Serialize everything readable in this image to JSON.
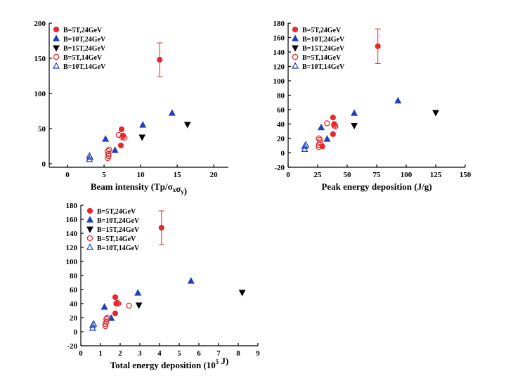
{
  "colors": {
    "red": "#e8282b",
    "blue": "#1f3fbf",
    "black": "#000000"
  },
  "chart_data": [
    {
      "type": "scatter",
      "title": "",
      "xlabel": "Beam intensity (Tp/σ_xσ_y)",
      "ylabel": "",
      "xlim": [
        -2.5,
        22
      ],
      "ylim": [
        -5,
        200
      ],
      "xticks": [
        0,
        5,
        10,
        15,
        20
      ],
      "yticks": [
        0,
        50,
        100,
        150,
        200
      ],
      "legend_position": "top-left",
      "legend": [
        "B=5T,24GeV",
        "B=10T,24GeV",
        "B=15T,24GeV",
        "B=5T,14GeV",
        "B=10T,14GeV"
      ],
      "series": [
        {
          "name": "B=5T,24GeV",
          "marker": "circle-filled",
          "color": "red",
          "points": [
            [
              7.3,
              26
            ],
            [
              7.4,
              49
            ],
            [
              7.6,
              40
            ],
            [
              12.6,
              148
            ]
          ],
          "errorbars": [
            [
              12.6,
              124,
              172
            ]
          ]
        },
        {
          "name": "B=10T,24GeV",
          "marker": "triangle-up-filled",
          "color": "blue",
          "points": [
            [
              5.2,
              35
            ],
            [
              6.5,
              19
            ],
            [
              10.3,
              55
            ],
            [
              14.3,
              72
            ]
          ]
        },
        {
          "name": "B=15T,24GeV",
          "marker": "triangle-down-filled",
          "color": "black",
          "points": [
            [
              10.2,
              38
            ],
            [
              16.4,
              56
            ]
          ]
        },
        {
          "name": "B=5T,14GeV",
          "marker": "circle-open",
          "color": "red",
          "points": [
            [
              5.5,
              8
            ],
            [
              5.6,
              11
            ],
            [
              5.6,
              14
            ],
            [
              5.5,
              18
            ],
            [
              5.7,
              20
            ],
            [
              7.0,
              41
            ],
            [
              7.5,
              38
            ],
            [
              7.8,
              37
            ]
          ]
        },
        {
          "name": "B=10T,14GeV",
          "marker": "triangle-up-open",
          "color": "blue",
          "points": [
            [
              3.0,
              6
            ],
            [
              3.1,
              9
            ],
            [
              3.0,
              11
            ]
          ]
        }
      ]
    },
    {
      "type": "scatter",
      "title": "",
      "xlabel": "Peak energy deposition (J/g)",
      "ylabel": "",
      "xlim": [
        0,
        150
      ],
      "ylim": [
        -20,
        180
      ],
      "xticks": [
        0,
        25,
        50,
        75,
        100,
        125,
        150
      ],
      "yticks": [
        -20,
        0,
        20,
        40,
        60,
        80,
        100,
        120,
        140,
        160,
        180
      ],
      "legend_position": "top-left",
      "legend": [
        "B=5T,24GeV",
        "B=10T,24GeV",
        "B=15T,24GeV",
        "B=5T,14GeV",
        "B=10T,14GeV"
      ],
      "series": [
        {
          "name": "B=5T,24GeV",
          "marker": "circle-filled",
          "color": "red",
          "points": [
            [
              29,
              9
            ],
            [
              38,
              26
            ],
            [
              38,
              49
            ],
            [
              39,
              40
            ],
            [
              76,
              148
            ]
          ],
          "errorbars": [
            [
              76,
              124,
              172
            ]
          ]
        },
        {
          "name": "B=10T,24GeV",
          "marker": "triangle-up-filled",
          "color": "blue",
          "points": [
            [
              28,
              35
            ],
            [
              33,
              19
            ],
            [
              56,
              55
            ],
            [
              93,
              72
            ]
          ]
        },
        {
          "name": "B=15T,24GeV",
          "marker": "triangle-down-filled",
          "color": "black",
          "points": [
            [
              56,
              38
            ],
            [
              125,
              56
            ]
          ]
        },
        {
          "name": "B=5T,14GeV",
          "marker": "circle-open",
          "color": "red",
          "points": [
            [
              26,
              8
            ],
            [
              26,
              11
            ],
            [
              27,
              14
            ],
            [
              27,
              18
            ],
            [
              26,
              20
            ],
            [
              33,
              41
            ],
            [
              39,
              38
            ],
            [
              40,
              37
            ]
          ]
        },
        {
          "name": "B=10T,14GeV",
          "marker": "triangle-up-open",
          "color": "blue",
          "points": [
            [
              14,
              5
            ],
            [
              14,
              9
            ],
            [
              15,
              11
            ]
          ]
        }
      ]
    },
    {
      "type": "scatter",
      "title": "",
      "xlabel": "Total energy deposition (10^5 J)",
      "ylabel": "",
      "xlim": [
        0,
        9
      ],
      "ylim": [
        -20,
        180
      ],
      "xticks": [
        0,
        1,
        2,
        3,
        4,
        5,
        6,
        7,
        8,
        9
      ],
      "yticks": [
        -20,
        0,
        20,
        40,
        60,
        80,
        100,
        120,
        140,
        160,
        180
      ],
      "legend_position": "top-left",
      "legend": [
        "B=5T,24GeV",
        "B=10T,24GeV",
        "B=15T,24GeV",
        "B=5T,14GeV",
        "B=10T,14GeV"
      ],
      "series": [
        {
          "name": "B=5T,24GeV",
          "marker": "circle-filled",
          "color": "red",
          "points": [
            [
              1.75,
              26
            ],
            [
              1.75,
              49
            ],
            [
              1.8,
              40
            ],
            [
              4.1,
              148
            ]
          ],
          "errorbars": [
            [
              4.1,
              124,
              172
            ]
          ]
        },
        {
          "name": "B=10T,24GeV",
          "marker": "triangle-up-filled",
          "color": "blue",
          "points": [
            [
              1.2,
              35
            ],
            [
              1.55,
              19
            ],
            [
              2.9,
              55
            ],
            [
              5.6,
              72
            ]
          ]
        },
        {
          "name": "B=15T,24GeV",
          "marker": "triangle-down-filled",
          "color": "black",
          "points": [
            [
              2.95,
              38
            ],
            [
              8.2,
              56
            ]
          ]
        },
        {
          "name": "B=5T,14GeV",
          "marker": "circle-open",
          "color": "red",
          "points": [
            [
              1.25,
              8
            ],
            [
              1.25,
              11
            ],
            [
              1.3,
              14
            ],
            [
              1.3,
              18
            ],
            [
              1.35,
              20
            ],
            [
              1.85,
              41
            ],
            [
              1.9,
              40
            ],
            [
              2.45,
              37
            ]
          ]
        },
        {
          "name": "B=10T,14GeV",
          "marker": "triangle-up-open",
          "color": "blue",
          "points": [
            [
              0.6,
              5
            ],
            [
              0.6,
              9
            ],
            [
              0.65,
              11
            ]
          ]
        }
      ]
    }
  ]
}
